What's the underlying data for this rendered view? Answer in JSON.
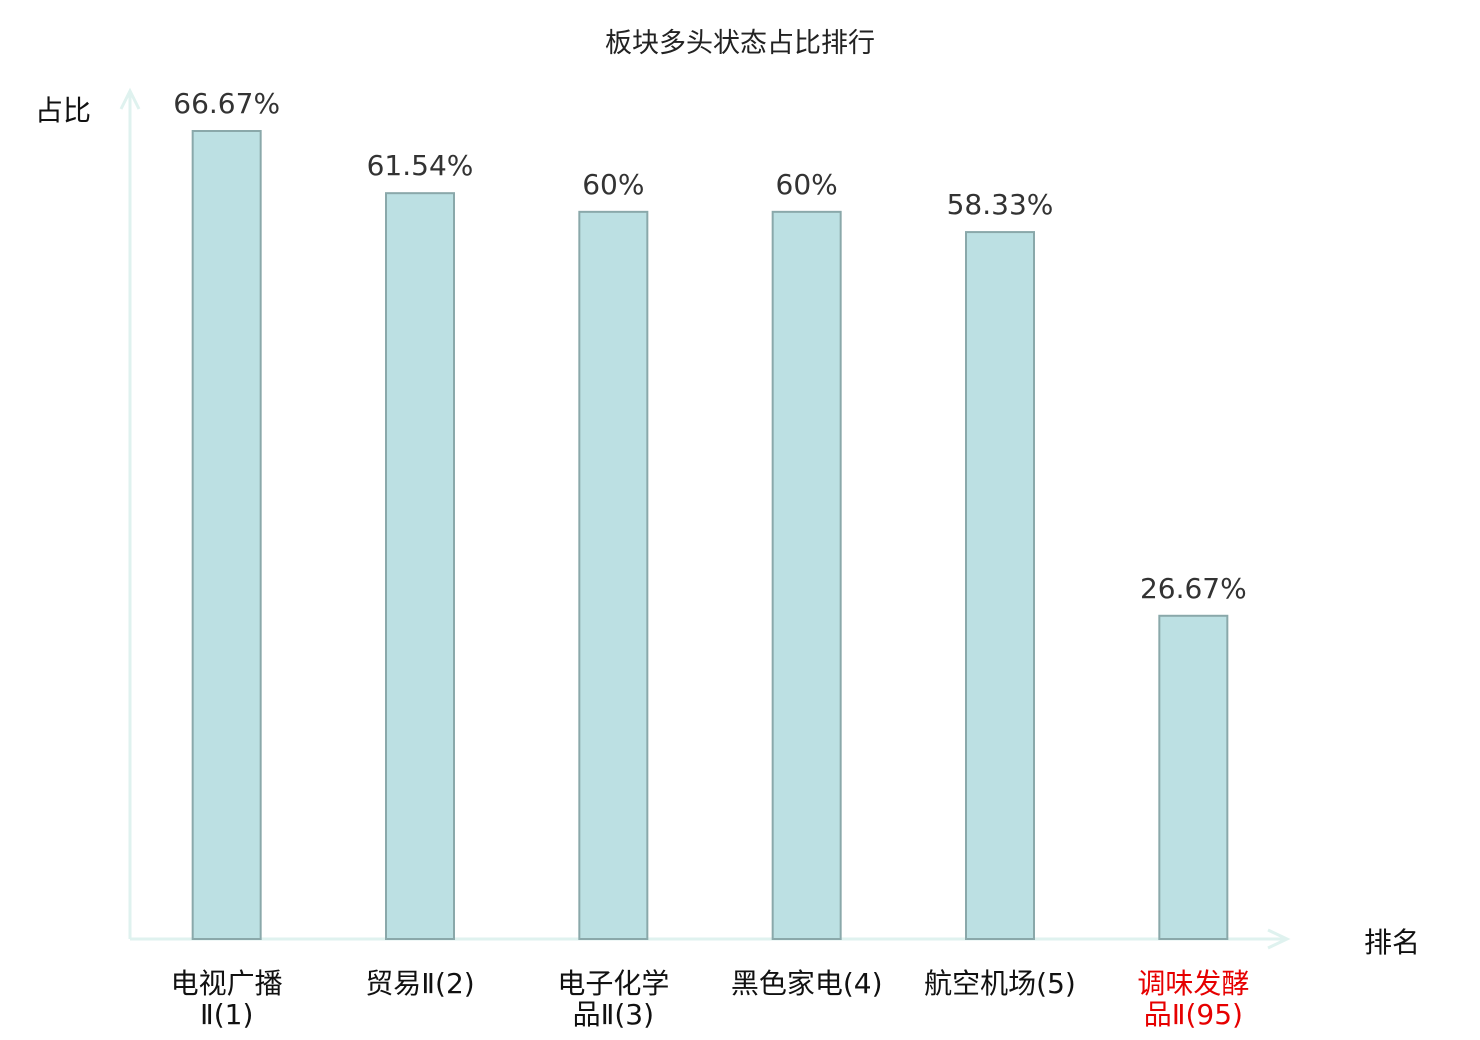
{
  "chart_data": {
    "type": "bar",
    "title": "板块多头状态占比排行",
    "ylabel": "占比",
    "xlabel": "排名",
    "ylim": [
      0,
      66.67
    ],
    "grid": false,
    "categories": [
      "电视广播Ⅱ(1)",
      "贸易Ⅱ(2)",
      "电子化学品Ⅱ(3)",
      "黑色家电(4)",
      "航空机场(5)",
      "调味发酵品Ⅱ(95)"
    ],
    "values": [
      66.67,
      61.54,
      60,
      60,
      58.33,
      26.67
    ],
    "value_labels": [
      "66.67%",
      "61.54%",
      "60%",
      "60%",
      "58.33%",
      "26.67%"
    ],
    "highlight_category": "调味发酵品Ⅱ(95)",
    "colors": {
      "bar_fill": "#bce0e3",
      "bar_stroke": "#8aa8aa",
      "axis": "#dff2ef",
      "label": "#111111",
      "highlight_label": "#e60000",
      "value_label": "#333333"
    }
  }
}
